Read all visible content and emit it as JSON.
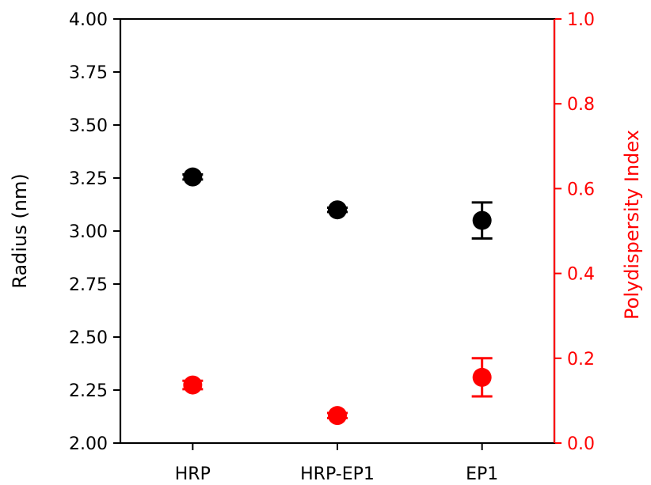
{
  "chart_data": {
    "type": "scatter",
    "title": "",
    "categories": [
      "HRP",
      "HRP-EP1",
      "EP1"
    ],
    "left_axis": {
      "label": "Radius (nm)",
      "ylim": [
        2.0,
        4.0
      ],
      "ticks": [
        2.0,
        2.25,
        2.5,
        2.75,
        3.0,
        3.25,
        3.5,
        3.75,
        4.0
      ],
      "tick_labels": [
        "2.00",
        "2.25",
        "2.50",
        "2.75",
        "3.00",
        "3.25",
        "3.50",
        "3.75",
        "4.00"
      ],
      "color": "#000000"
    },
    "right_axis": {
      "label": "Polydispersity Index",
      "ylim": [
        0.0,
        1.0
      ],
      "ticks": [
        0.0,
        0.2,
        0.4,
        0.6,
        0.8,
        1.0
      ],
      "tick_labels": [
        "0.0",
        "0.2",
        "0.4",
        "0.6",
        "0.8",
        "1.0"
      ],
      "color": "#ff0000"
    },
    "series": [
      {
        "axis": "left",
        "color": "#000000",
        "values": [
          3.255,
          3.1,
          3.05
        ],
        "errors": [
          0.012,
          0.01,
          0.085
        ]
      },
      {
        "axis": "right",
        "color": "#ff0000",
        "values": [
          0.137,
          0.065,
          0.155
        ],
        "errors": [
          0.01,
          0.006,
          0.045
        ]
      }
    ],
    "grid": false,
    "legend": "none"
  }
}
